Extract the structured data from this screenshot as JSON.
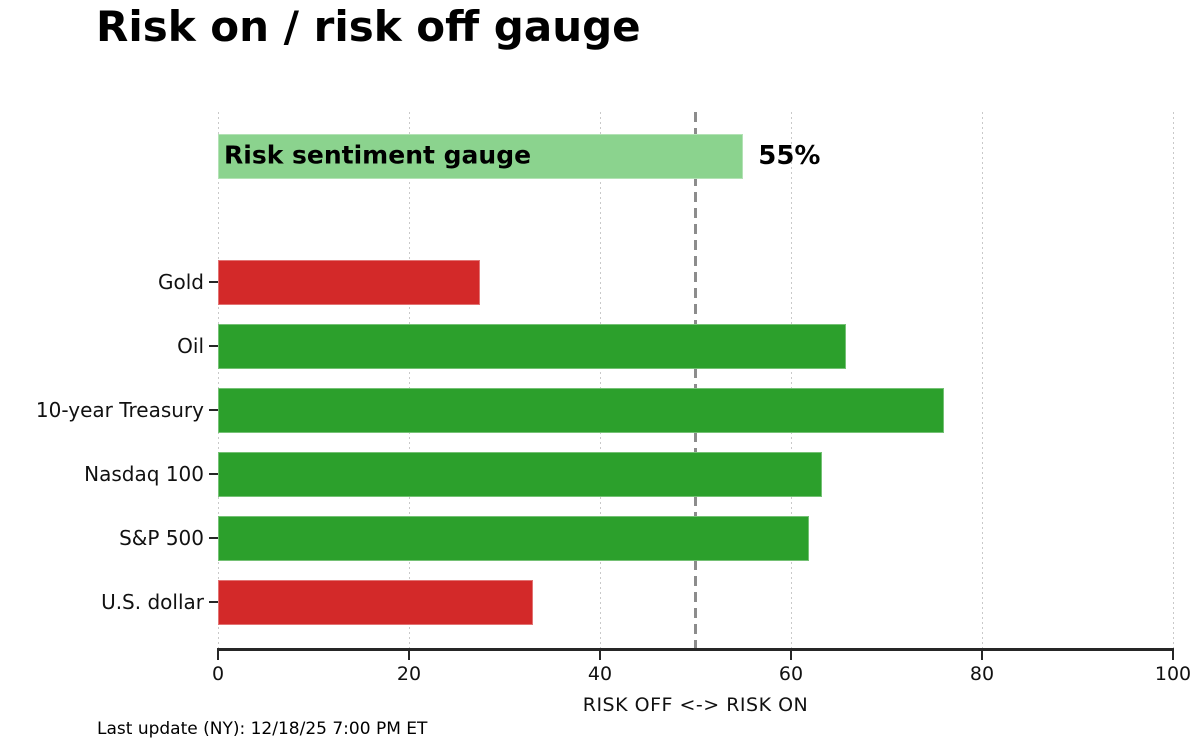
{
  "title": "Risk on / risk off gauge",
  "footer": "Last update (NY): 12/18/25 7:00 PM ET",
  "colors": {
    "risk_on_green": "#2ca02c",
    "risk_off_red": "#d32929",
    "gauge_light_green": "#8bd38e",
    "grid": "#c9c9c9",
    "reference_line": "#8c8c8c",
    "axis": "#262626"
  },
  "chart_data": {
    "type": "bar",
    "orientation": "horizontal",
    "title": "Risk on / risk off gauge",
    "xlabel": "RISK OFF <-> RISK ON",
    "xlim": [
      0,
      100
    ],
    "xticks": [
      0,
      20,
      40,
      60,
      80,
      100
    ],
    "grid": "dotted-vertical",
    "reference_line_x": 50,
    "gauge": {
      "label": "Risk sentiment gauge",
      "value": 55,
      "value_label": "55%",
      "color": "#8bd38e"
    },
    "categories": [
      "Gold",
      "Oil",
      "10-year Treasury",
      "Nasdaq 100",
      "S&P 500",
      "U.S. dollar"
    ],
    "values": [
      27.4,
      65.8,
      76,
      63.2,
      61.9,
      33
    ],
    "colors": [
      "#d32929",
      "#2ca02c",
      "#2ca02c",
      "#2ca02c",
      "#2ca02c",
      "#d32929"
    ]
  }
}
